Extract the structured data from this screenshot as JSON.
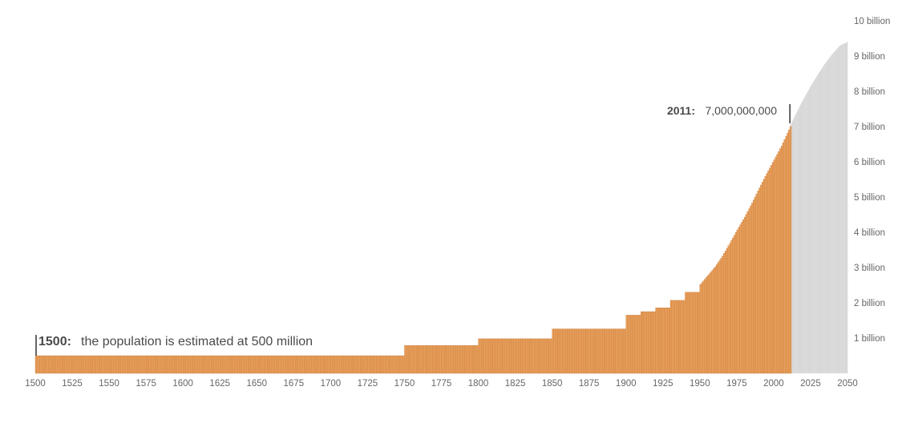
{
  "chart_data": {
    "type": "bar",
    "title": "",
    "xlabel": "",
    "ylabel": "",
    "xlim": [
      1500,
      2050
    ],
    "ylim": [
      0,
      10000000000
    ],
    "x_ticks": [
      1500,
      1525,
      1550,
      1575,
      1600,
      1625,
      1650,
      1675,
      1700,
      1725,
      1750,
      1775,
      1800,
      1825,
      1850,
      1875,
      1900,
      1925,
      1950,
      1975,
      2000,
      2025,
      2050
    ],
    "y_ticks": [
      {
        "value": 1000000000,
        "label": "1 billion"
      },
      {
        "value": 2000000000,
        "label": "2 billion"
      },
      {
        "value": 3000000000,
        "label": "3 billion"
      },
      {
        "value": 4000000000,
        "label": "4 billion"
      },
      {
        "value": 5000000000,
        "label": "5 billion"
      },
      {
        "value": 6000000000,
        "label": "6 billion"
      },
      {
        "value": 7000000000,
        "label": "7 billion"
      },
      {
        "value": 8000000000,
        "label": "8 billion"
      },
      {
        "value": 9000000000,
        "label": "9 billion"
      },
      {
        "value": 10000000000,
        "label": "10 billion"
      }
    ],
    "grid": false,
    "series": [
      {
        "type": "step-bars",
        "color": "#e8a15f",
        "stroke_color": "#c9782f",
        "x_range": [
          1500,
          2011
        ],
        "steps": [
          {
            "from": 1500,
            "to": 1750,
            "value": 500000000
          },
          {
            "from": 1750,
            "to": 1800,
            "value": 790000000
          },
          {
            "from": 1800,
            "to": 1850,
            "value": 980000000
          },
          {
            "from": 1850,
            "to": 1900,
            "value": 1260000000
          },
          {
            "from": 1900,
            "to": 1910,
            "value": 1650000000
          },
          {
            "from": 1910,
            "to": 1920,
            "value": 1750000000
          },
          {
            "from": 1920,
            "to": 1930,
            "value": 1860000000
          },
          {
            "from": 1930,
            "to": 1940,
            "value": 2070000000
          },
          {
            "from": 1940,
            "to": 1950,
            "value": 2300000000
          }
        ],
        "curve": [
          [
            1950,
            2520000000
          ],
          [
            1955,
            2770000000
          ],
          [
            1960,
            3020000000
          ],
          [
            1965,
            3330000000
          ],
          [
            1970,
            3690000000
          ],
          [
            1975,
            4070000000
          ],
          [
            1980,
            4430000000
          ],
          [
            1985,
            4830000000
          ],
          [
            1990,
            5260000000
          ],
          [
            1995,
            5670000000
          ],
          [
            2000,
            6060000000
          ],
          [
            2005,
            6450000000
          ],
          [
            2011,
            7000000000
          ]
        ]
      },
      {
        "type": "projection-area",
        "color": "#e6e6e6",
        "stroke_color": "#cfcfcf",
        "points": [
          [
            2011,
            7000000000
          ],
          [
            2015,
            7350000000
          ],
          [
            2020,
            7760000000
          ],
          [
            2025,
            8140000000
          ],
          [
            2030,
            8480000000
          ],
          [
            2035,
            8800000000
          ],
          [
            2040,
            9070000000
          ],
          [
            2045,
            9300000000
          ],
          [
            2050,
            9400000000
          ]
        ]
      }
    ],
    "annotations": [
      {
        "id": "start",
        "year_label": "1500:",
        "text": "the population is estimated at 500 million",
        "x": 1500,
        "y": 500000000
      },
      {
        "id": "end",
        "year_label": "2011:",
        "text": "7,000,000,000",
        "x": 2011,
        "y": 7000000000
      }
    ]
  }
}
